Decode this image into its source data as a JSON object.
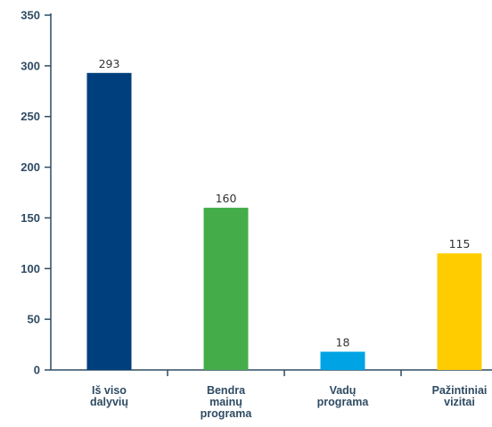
{
  "chart_data": {
    "type": "bar",
    "categories": [
      [
        "Iš viso",
        "dalyvių"
      ],
      [
        "Bendra",
        "mainų",
        "programa"
      ],
      [
        "Vadų",
        "programa"
      ],
      [
        "Pažintiniai",
        "vizitai"
      ]
    ],
    "values": [
      293,
      160,
      18,
      115
    ],
    "value_labels": [
      "293",
      "160",
      "18",
      "115"
    ],
    "colors": [
      "#003f7d",
      "#44ad4a",
      "#00a4e4",
      "#ffcc00"
    ],
    "ylim": [
      0,
      350
    ],
    "yticks": [
      0,
      50,
      100,
      150,
      200,
      250,
      300,
      350
    ],
    "ytick_labels": [
      "0",
      "50",
      "100",
      "150",
      "200",
      "250",
      "300",
      "350"
    ],
    "axis_color": "#2e4b63",
    "grid": false,
    "title": "",
    "xlabel": "",
    "ylabel": ""
  }
}
